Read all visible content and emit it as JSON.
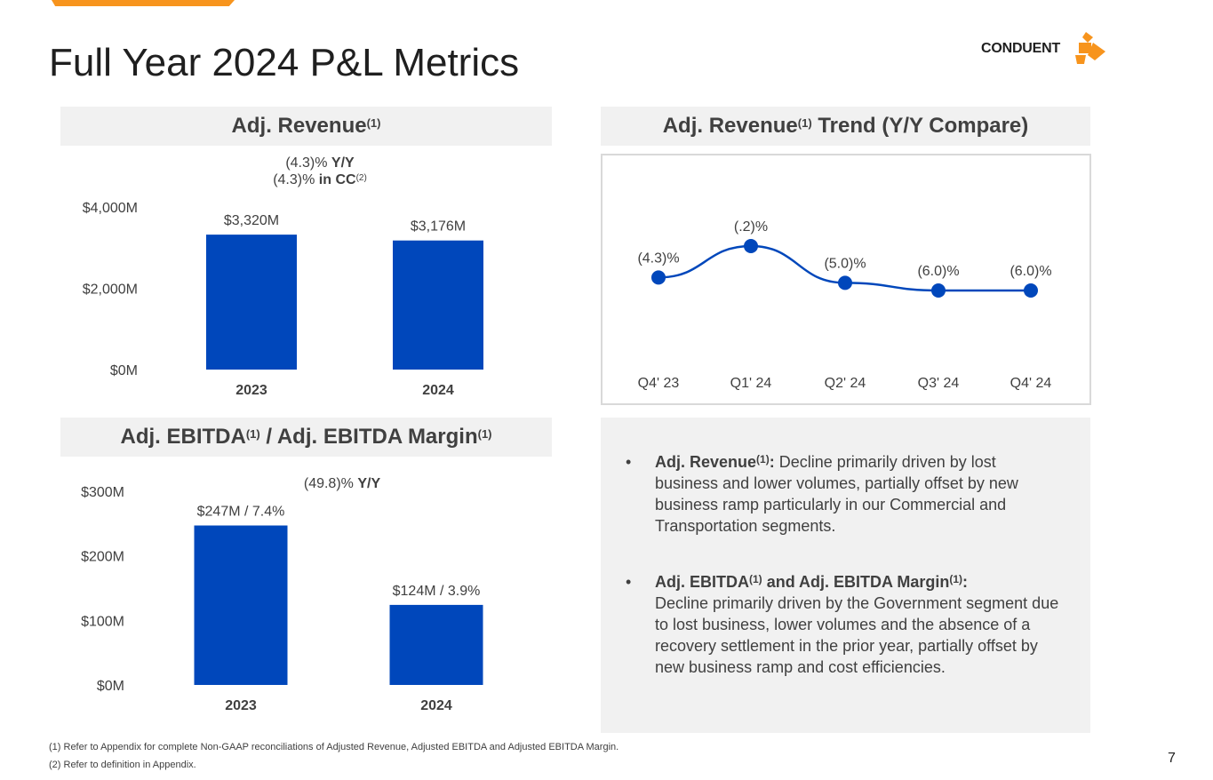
{
  "page": {
    "title": "Full Year 2024 P&L Metrics",
    "page_number": "7",
    "accent_color": "#f7941d",
    "bar_color": "#0047bb"
  },
  "logo": {
    "text": "CONDUENT",
    "icon": "conduent-logo-icon"
  },
  "revenue_panel": {
    "header": "Adj. Revenue",
    "header_sup": "(1)",
    "note_line1_value": "(4.3)%",
    "note_line1_bold": "Y/Y",
    "note_line2_value": "(4.3)%",
    "note_line2_bold": "in CC",
    "note_line2_sup": "(2)"
  },
  "trend_panel": {
    "header": "Adj. Revenue",
    "header_sup": "(1)",
    "header_rest": "Trend (Y/Y Compare)"
  },
  "ebitda_panel": {
    "header_a": "Adj. EBITDA",
    "header_sup1": "(1)",
    "header_b": "/ Adj. EBITDA Margin",
    "header_sup2": "(1)",
    "note_value": "(49.8)%",
    "note_bold": "Y/Y"
  },
  "bullets": [
    {
      "bold": "Adj. Revenue",
      "sup": "(1)",
      "bold_end": ":",
      "text": "Decline primarily driven by lost business and lower volumes, partially offset by new business ramp particularly in our Commercial and Transportation segments."
    },
    {
      "bold": "Adj. EBITDA",
      "sup": "(1)",
      "bold_mid": "and Adj. EBITDA Margin",
      "sup2": "(1)",
      "bold_end": ":",
      "text": "Decline primarily driven by the Government segment due to lost business, lower volumes and the absence of a recovery settlement in the prior year, partially offset by new business ramp and cost efficiencies."
    }
  ],
  "footnotes": [
    "(1) Refer to Appendix for complete Non-GAAP reconciliations of Adjusted Revenue, Adjusted EBITDA and Adjusted EBITDA Margin.",
    "(2) Refer to definition in Appendix."
  ],
  "chart_data": [
    {
      "type": "bar",
      "title": "Adj. Revenue",
      "categories": [
        "2023",
        "2024"
      ],
      "values": [
        3320,
        3176
      ],
      "data_labels": [
        "$3,320M",
        "$3,176M"
      ],
      "y_ticks": [
        0,
        2000,
        4000
      ],
      "y_tick_labels": [
        "$0M",
        "$2,000M",
        "$4,000M"
      ],
      "ylim": [
        0,
        4000
      ],
      "unit": "$M"
    },
    {
      "type": "line",
      "title": "Adj. Revenue Trend (Y/Y Compare)",
      "categories": [
        "Q4' 23",
        "Q1' 24",
        "Q2' 24",
        "Q3' 24",
        "Q4' 24"
      ],
      "values": [
        -4.3,
        -0.2,
        -5.0,
        -6.0,
        -6.0
      ],
      "data_labels": [
        "(4.3)%",
        "(.2)%",
        "(5.0)%",
        "(6.0)%",
        "(6.0)%"
      ],
      "unit": "%"
    },
    {
      "type": "bar",
      "title": "Adj. EBITDA / Adj. EBITDA Margin",
      "categories": [
        "2023",
        "2024"
      ],
      "values": [
        247,
        124
      ],
      "margins": [
        7.4,
        3.9
      ],
      "data_labels": [
        "$247M / 7.4%",
        "$124M / 3.9%"
      ],
      "y_ticks": [
        0,
        100,
        200,
        300
      ],
      "y_tick_labels": [
        "$0M",
        "$100M",
        "$200M",
        "$300M"
      ],
      "ylim": [
        0,
        300
      ],
      "unit": "$M"
    }
  ]
}
